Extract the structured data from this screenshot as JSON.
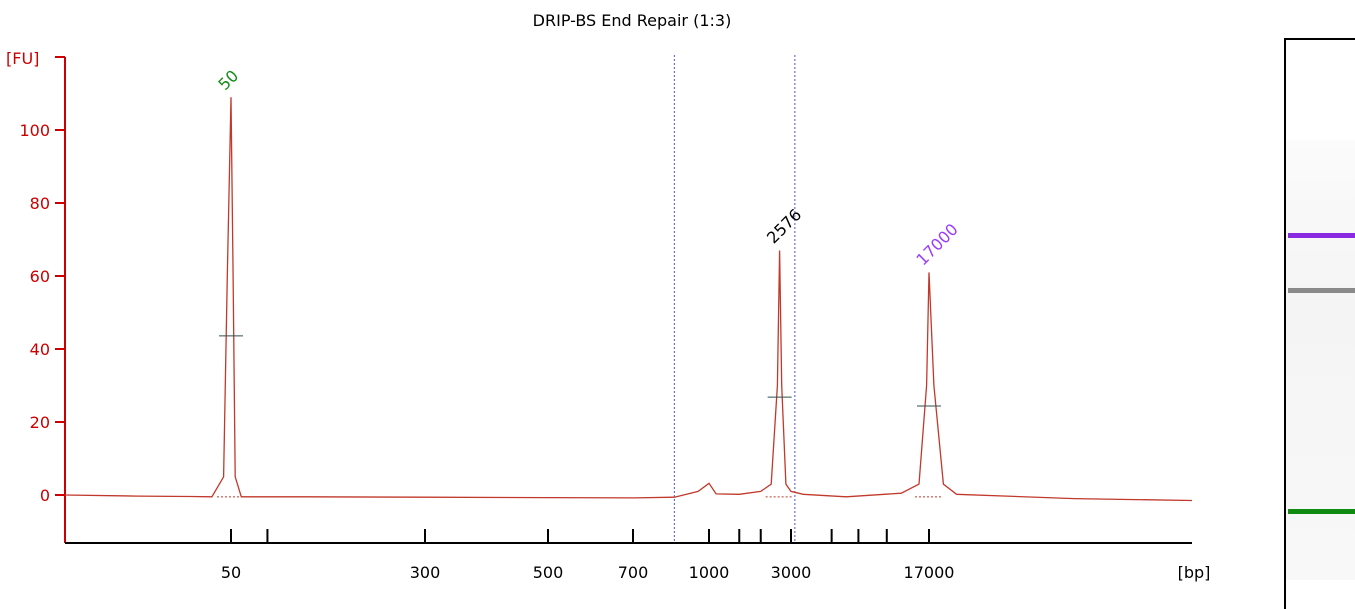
{
  "chart_data": {
    "type": "line",
    "title": "DRIP-BS End Repair (1:3)",
    "ylabel": "[FU]",
    "xlabel": "[bp]",
    "ylim": [
      -13,
      115
    ],
    "y_ticks": [
      0,
      20,
      40,
      60,
      80,
      100
    ],
    "x_tick_labels": [
      "50",
      "300",
      "500",
      "700",
      "1000",
      "3000",
      "17000"
    ],
    "series": [
      {
        "points": [
          [
            20,
            0
          ],
          [
            30,
            -0.3
          ],
          [
            40,
            -0.4
          ],
          [
            45,
            -0.5
          ],
          [
            48,
            5
          ],
          [
            49,
            60
          ],
          [
            50,
            109
          ],
          [
            51,
            60
          ],
          [
            52,
            5
          ],
          [
            55,
            -0.5
          ],
          [
            100,
            -0.5
          ],
          [
            300,
            -0.6
          ],
          [
            500,
            -0.7
          ],
          [
            700,
            -0.8
          ],
          [
            850,
            -0.6
          ],
          [
            950,
            1.0
          ],
          [
            1000,
            3.2
          ],
          [
            1100,
            0.3
          ],
          [
            1500,
            0.2
          ],
          [
            2000,
            1.0
          ],
          [
            2300,
            3.0
          ],
          [
            2500,
            30
          ],
          [
            2576,
            67
          ],
          [
            2650,
            30
          ],
          [
            2800,
            3
          ],
          [
            3000,
            1.0
          ],
          [
            3500,
            0.2
          ],
          [
            6000,
            -0.5
          ],
          [
            12000,
            0.5
          ],
          [
            15000,
            3
          ],
          [
            16500,
            30
          ],
          [
            17000,
            61
          ],
          [
            17500,
            30
          ],
          [
            18500,
            3
          ],
          [
            20000,
            0.2
          ],
          [
            40000,
            -1.0
          ],
          [
            80000,
            -1.5
          ]
        ]
      }
    ],
    "peaks": [
      {
        "label": "50",
        "bp": 50,
        "height": 109,
        "color": "#178c17"
      },
      {
        "label": "2576",
        "bp": 2576,
        "height": 67,
        "color": "#000000"
      },
      {
        "label": "17000",
        "bp": 17000,
        "height": 61,
        "color": "#9c3cff"
      }
    ],
    "markers_bp": [
      850,
      3150
    ],
    "gel_bands": [
      {
        "name": "upper-marker",
        "color": "#8a2be2"
      },
      {
        "name": "sample-band",
        "color": "#8a8a8a"
      },
      {
        "name": "lower-marker",
        "color": "#118a11"
      }
    ],
    "grid": false,
    "legend": "none"
  }
}
